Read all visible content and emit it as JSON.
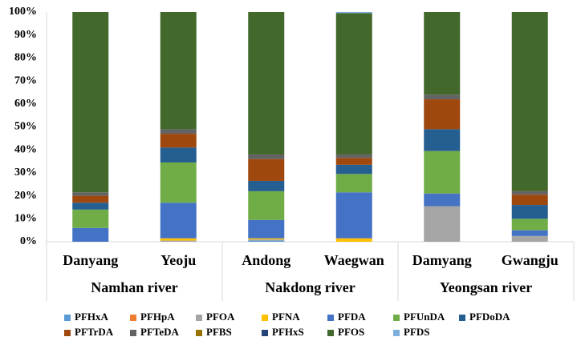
{
  "chart_data": {
    "type": "stacked_bar_percent",
    "categories": [
      "Danyang",
      "Yeoju",
      "Andong",
      "Waegwan",
      "Damyang",
      "Gwangju"
    ],
    "groups": [
      {
        "name": "Namhan river",
        "categories": [
          "Danyang",
          "Yeoju"
        ]
      },
      {
        "name": "Nakdong river",
        "categories": [
          "Andong",
          "Waegwan"
        ]
      },
      {
        "name": "Yeongsan river",
        "categories": [
          "Damyang",
          "Gwangju"
        ]
      }
    ],
    "series": [
      {
        "name": "PFHxA",
        "color": "#5b9bd5",
        "values": [
          0,
          0,
          0.5,
          0,
          0,
          0
        ]
      },
      {
        "name": "PFHpA",
        "color": "#ed7d31",
        "values": [
          0,
          0,
          0,
          0,
          0,
          0
        ]
      },
      {
        "name": "PFOA",
        "color": "#a5a5a5",
        "values": [
          0,
          0.5,
          0.5,
          0,
          15.5,
          2.5
        ]
      },
      {
        "name": "PFNA",
        "color": "#ffc000",
        "values": [
          0,
          1,
          0.5,
          1.5,
          0,
          0
        ]
      },
      {
        "name": "PFDA",
        "color": "#4472c4",
        "values": [
          6,
          15.5,
          8,
          20,
          5.5,
          2.5
        ]
      },
      {
        "name": "PFUnDA",
        "color": "#70ad47",
        "values": [
          8,
          17.5,
          12.5,
          8,
          18.5,
          5
        ]
      },
      {
        "name": "PFDoDA",
        "color": "#255e91",
        "values": [
          3,
          6.5,
          4.5,
          4,
          9.5,
          6
        ]
      },
      {
        "name": "PFTrDA",
        "color": "#9e480e",
        "values": [
          3,
          6,
          9.5,
          3,
          13,
          4.5
        ]
      },
      {
        "name": "PFTeDA",
        "color": "#636363",
        "values": [
          1.5,
          2,
          2,
          1.5,
          2,
          1.5
        ]
      },
      {
        "name": "PFBS",
        "color": "#997300",
        "values": [
          0,
          0,
          0,
          0,
          0,
          0
        ]
      },
      {
        "name": "PFHxS",
        "color": "#264478",
        "values": [
          0,
          0,
          0,
          0,
          0,
          0
        ]
      },
      {
        "name": "PFOS",
        "color": "#43682b",
        "values": [
          78.5,
          51,
          62,
          61.5,
          36,
          78
        ]
      },
      {
        "name": "PFDS",
        "color": "#7cafdd",
        "values": [
          0,
          0,
          0,
          0.5,
          0,
          0
        ]
      }
    ],
    "ylim": [
      0,
      100
    ],
    "yticks": [
      {
        "value": 0,
        "label": "0%"
      },
      {
        "value": 10,
        "label": "10%"
      },
      {
        "value": 20,
        "label": "20%"
      },
      {
        "value": 30,
        "label": "30%"
      },
      {
        "value": 40,
        "label": "40%"
      },
      {
        "value": 50,
        "label": "50%"
      },
      {
        "value": 60,
        "label": "60%"
      },
      {
        "value": 70,
        "label": "70%"
      },
      {
        "value": 80,
        "label": "80%"
      },
      {
        "value": 90,
        "label": "90%"
      },
      {
        "value": 100,
        "label": "100%"
      }
    ],
    "grid": false
  }
}
